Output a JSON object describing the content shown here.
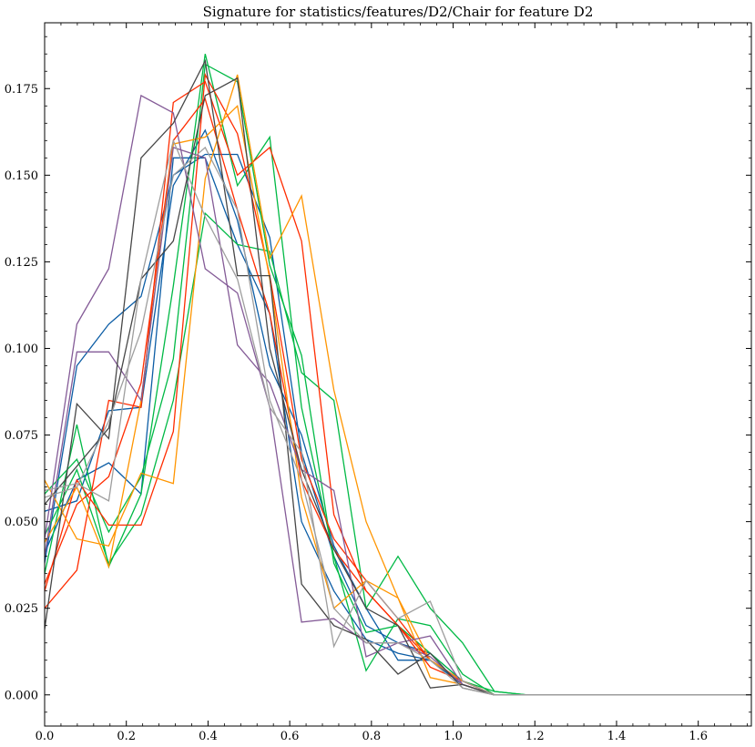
{
  "chart_data": {
    "type": "line",
    "title": "Signature for statistics/features/D2/Chair for feature D2",
    "xlabel": "",
    "ylabel": "",
    "xlim": [
      0,
      1.73
    ],
    "ylim": [
      -0.009,
      0.194
    ],
    "xticks": [
      0.0,
      0.2,
      0.4,
      0.6,
      0.8,
      1.0,
      1.2,
      1.4,
      1.6
    ],
    "xtick_labels": [
      "0.0",
      "0.2",
      "0.4",
      "0.6",
      "0.8",
      "1.0",
      "1.2",
      "1.4",
      "1.6"
    ],
    "yticks": [
      0.0,
      0.025,
      0.05,
      0.075,
      0.1,
      0.125,
      0.15,
      0.175
    ],
    "ytick_labels": [
      "0.000",
      "0.025",
      "0.050",
      "0.075",
      "0.100",
      "0.125",
      "0.150",
      "0.175"
    ],
    "grid": false,
    "legend": "none",
    "x": [
      0.0,
      0.079,
      0.157,
      0.236,
      0.315,
      0.393,
      0.472,
      0.551,
      0.629,
      0.708,
      0.787,
      0.865,
      0.944,
      1.023,
      1.101,
      1.18,
      1.259,
      1.337,
      1.416,
      1.495,
      1.573,
      1.652,
      1.73
    ],
    "series": [
      {
        "color": "#0c5da5",
        "values": [
          0.038,
          0.095,
          0.107,
          0.115,
          0.15,
          0.156,
          0.156,
          0.132,
          0.07,
          0.04,
          0.02,
          0.015,
          0.012,
          0.004,
          0.0,
          0.0,
          0.0,
          0.0,
          0.0,
          0.0,
          0.0,
          0.0,
          0.0
        ]
      },
      {
        "color": "#0c5da5",
        "values": [
          0.053,
          0.056,
          0.082,
          0.083,
          0.147,
          0.163,
          0.137,
          0.095,
          0.075,
          0.043,
          0.025,
          0.01,
          0.01,
          0.003,
          0.0,
          0.0,
          0.0,
          0.0,
          0.0,
          0.0,
          0.0,
          0.0,
          0.0
        ]
      },
      {
        "color": "#0c5da5",
        "values": [
          0.041,
          0.062,
          0.067,
          0.058,
          0.155,
          0.155,
          0.13,
          0.11,
          0.05,
          0.03,
          0.016,
          0.012,
          0.01,
          0.003,
          0.0,
          0.0,
          0.0,
          0.0,
          0.0,
          0.0,
          0.0,
          0.0,
          0.0
        ]
      },
      {
        "color": "#00b945",
        "values": [
          0.035,
          0.078,
          0.037,
          0.058,
          0.118,
          0.185,
          0.147,
          0.161,
          0.083,
          0.04,
          0.007,
          0.022,
          0.02,
          0.006,
          0.0,
          0.0,
          0.0,
          0.0,
          0.0,
          0.0,
          0.0,
          0.0,
          0.0
        ]
      },
      {
        "color": "#00b945",
        "values": [
          0.046,
          0.065,
          0.038,
          0.052,
          0.085,
          0.139,
          0.13,
          0.128,
          0.093,
          0.085,
          0.025,
          0.04,
          0.025,
          0.015,
          0.001,
          0.0,
          0.0,
          0.0,
          0.0,
          0.0,
          0.0,
          0.0,
          0.0
        ]
      },
      {
        "color": "#00b945",
        "values": [
          0.058,
          0.068,
          0.047,
          0.063,
          0.097,
          0.182,
          0.177,
          0.124,
          0.098,
          0.038,
          0.018,
          0.02,
          0.012,
          0.004,
          0.001,
          0.0,
          0.0,
          0.0,
          0.0,
          0.0,
          0.0,
          0.0,
          0.0
        ]
      },
      {
        "color": "#ff2c00",
        "values": [
          0.025,
          0.036,
          0.085,
          0.083,
          0.171,
          0.177,
          0.15,
          0.158,
          0.131,
          0.052,
          0.03,
          0.02,
          0.01,
          0.004,
          0.0,
          0.0,
          0.0,
          0.0,
          0.0,
          0.0,
          0.0,
          0.0,
          0.0
        ]
      },
      {
        "color": "#ff2c00",
        "values": [
          0.03,
          0.062,
          0.049,
          0.049,
          0.076,
          0.179,
          0.162,
          0.121,
          0.068,
          0.045,
          0.033,
          0.022,
          0.01,
          0.004,
          0.0,
          0.0,
          0.0,
          0.0,
          0.0,
          0.0,
          0.0,
          0.0,
          0.0
        ]
      },
      {
        "color": "#ff2c00",
        "values": [
          0.032,
          0.055,
          0.063,
          0.09,
          0.16,
          0.172,
          0.14,
          0.11,
          0.062,
          0.042,
          0.03,
          0.02,
          0.008,
          0.004,
          0.0,
          0.0,
          0.0,
          0.0,
          0.0,
          0.0,
          0.0,
          0.0,
          0.0
        ]
      },
      {
        "color": "#ff9500",
        "values": [
          0.062,
          0.045,
          0.043,
          0.064,
          0.061,
          0.149,
          0.179,
          0.126,
          0.144,
          0.088,
          0.05,
          0.028,
          0.005,
          0.003,
          0.0,
          0.0,
          0.0,
          0.0,
          0.0,
          0.0,
          0.0,
          0.0,
          0.0
        ]
      },
      {
        "color": "#ff9500",
        "values": [
          0.044,
          0.06,
          0.037,
          0.085,
          0.159,
          0.161,
          0.17,
          0.12,
          0.057,
          0.025,
          0.033,
          0.028,
          0.01,
          0.004,
          0.0,
          0.0,
          0.0,
          0.0,
          0.0,
          0.0,
          0.0,
          0.0,
          0.0
        ]
      },
      {
        "color": "#845b97",
        "values": [
          0.045,
          0.107,
          0.123,
          0.173,
          0.168,
          0.123,
          0.116,
          0.083,
          0.021,
          0.022,
          0.015,
          0.015,
          0.017,
          0.003,
          0.0,
          0.0,
          0.0,
          0.0,
          0.0,
          0.0,
          0.0,
          0.0,
          0.0
        ]
      },
      {
        "color": "#845b97",
        "values": [
          0.04,
          0.099,
          0.099,
          0.085,
          0.158,
          0.155,
          0.101,
          0.09,
          0.065,
          0.059,
          0.011,
          0.015,
          0.011,
          0.003,
          0.0,
          0.0,
          0.0,
          0.0,
          0.0,
          0.0,
          0.0,
          0.0,
          0.0
        ]
      },
      {
        "color": "#474747",
        "values": [
          0.019,
          0.084,
          0.074,
          0.155,
          0.165,
          0.183,
          0.121,
          0.121,
          0.032,
          0.02,
          0.016,
          0.006,
          0.012,
          0.002,
          0.0,
          0.0,
          0.0,
          0.0,
          0.0,
          0.0,
          0.0,
          0.0,
          0.0
        ]
      },
      {
        "color": "#474747",
        "values": [
          0.055,
          0.066,
          0.077,
          0.12,
          0.131,
          0.173,
          0.178,
          0.1,
          0.065,
          0.042,
          0.025,
          0.02,
          0.002,
          0.003,
          0.0,
          0.0,
          0.0,
          0.0,
          0.0,
          0.0,
          0.0,
          0.0,
          0.0
        ]
      },
      {
        "color": "#9e9e9e",
        "values": [
          0.059,
          0.061,
          0.056,
          0.12,
          0.16,
          0.138,
          0.12,
          0.083,
          0.07,
          0.014,
          0.033,
          0.022,
          0.027,
          0.004,
          0.0,
          0.0,
          0.0,
          0.0,
          0.0,
          0.0,
          0.0,
          0.0,
          0.0
        ]
      },
      {
        "color": "#9e9e9e",
        "values": [
          0.057,
          0.06,
          0.079,
          0.105,
          0.15,
          0.158,
          0.14,
          0.085,
          0.062,
          0.025,
          0.015,
          0.015,
          0.01,
          0.002,
          0.0,
          0.0,
          0.0,
          0.0,
          0.0,
          0.0,
          0.0,
          0.0,
          0.0
        ]
      }
    ]
  }
}
